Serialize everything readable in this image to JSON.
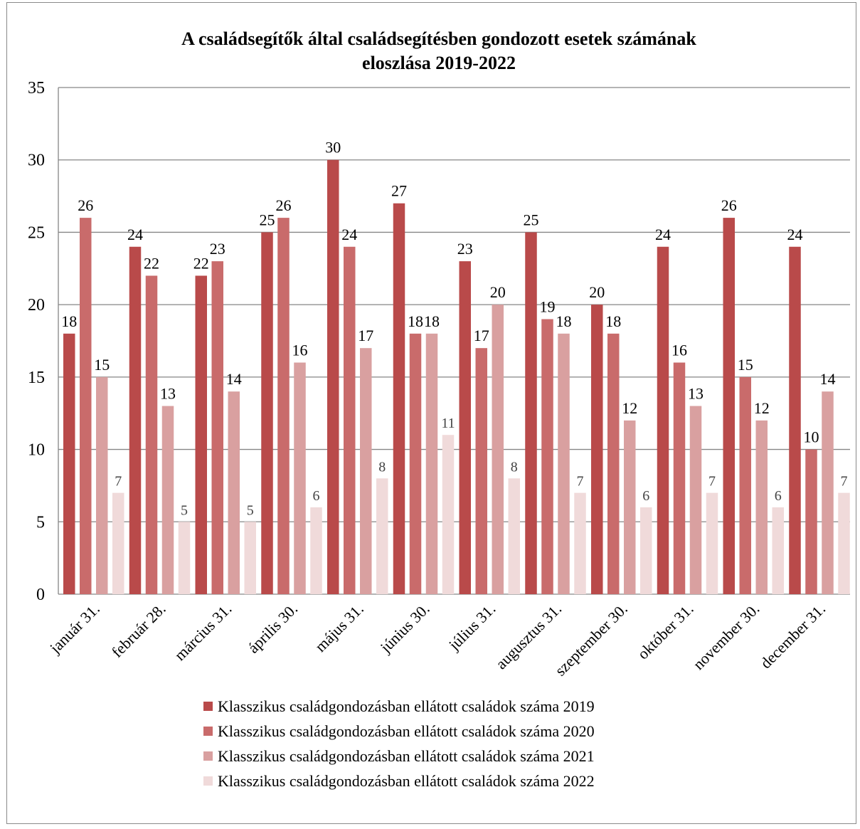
{
  "chart_data": {
    "type": "bar",
    "title_lines": [
      "A családsegítők által családsegítésben gondozott esetek  számának",
      "eloszlása 2019-2022"
    ],
    "categories": [
      "január 31.",
      "február 28.",
      "március 31.",
      "április 30.",
      "május 31.",
      "június 30.",
      "július 31.",
      "augusztus 31.",
      "szeptember 30.",
      "október 31.",
      "november 30.",
      "december 31."
    ],
    "series": [
      {
        "name": "Klasszikus családgondozásban ellátott  családok száma 2019",
        "color": "#b94a4a",
        "values": [
          18,
          24,
          22,
          25,
          30,
          27,
          23,
          25,
          20,
          24,
          26,
          24
        ]
      },
      {
        "name": "Klasszikus családgondozásban ellátott családok száma 2020",
        "color": "#c96b6b",
        "values": [
          26,
          22,
          23,
          26,
          24,
          18,
          17,
          19,
          18,
          16,
          15,
          10
        ]
      },
      {
        "name": "Klasszikus családgondozásban ellátott családok száma 2021",
        "color": "#d9a0a0",
        "values": [
          15,
          13,
          14,
          16,
          17,
          18,
          20,
          18,
          12,
          13,
          12,
          14
        ]
      },
      {
        "name": "Klasszikus családgondozásban ellátott családok száma 2022",
        "color": "#f0dada",
        "values": [
          7,
          5,
          5,
          6,
          8,
          11,
          8,
          7,
          6,
          7,
          6,
          7
        ]
      }
    ],
    "ylim": [
      0,
      35
    ],
    "yticks": [
      0,
      5,
      10,
      15,
      20,
      25,
      30,
      35
    ],
    "grid": true,
    "legend_position": "bottom"
  }
}
